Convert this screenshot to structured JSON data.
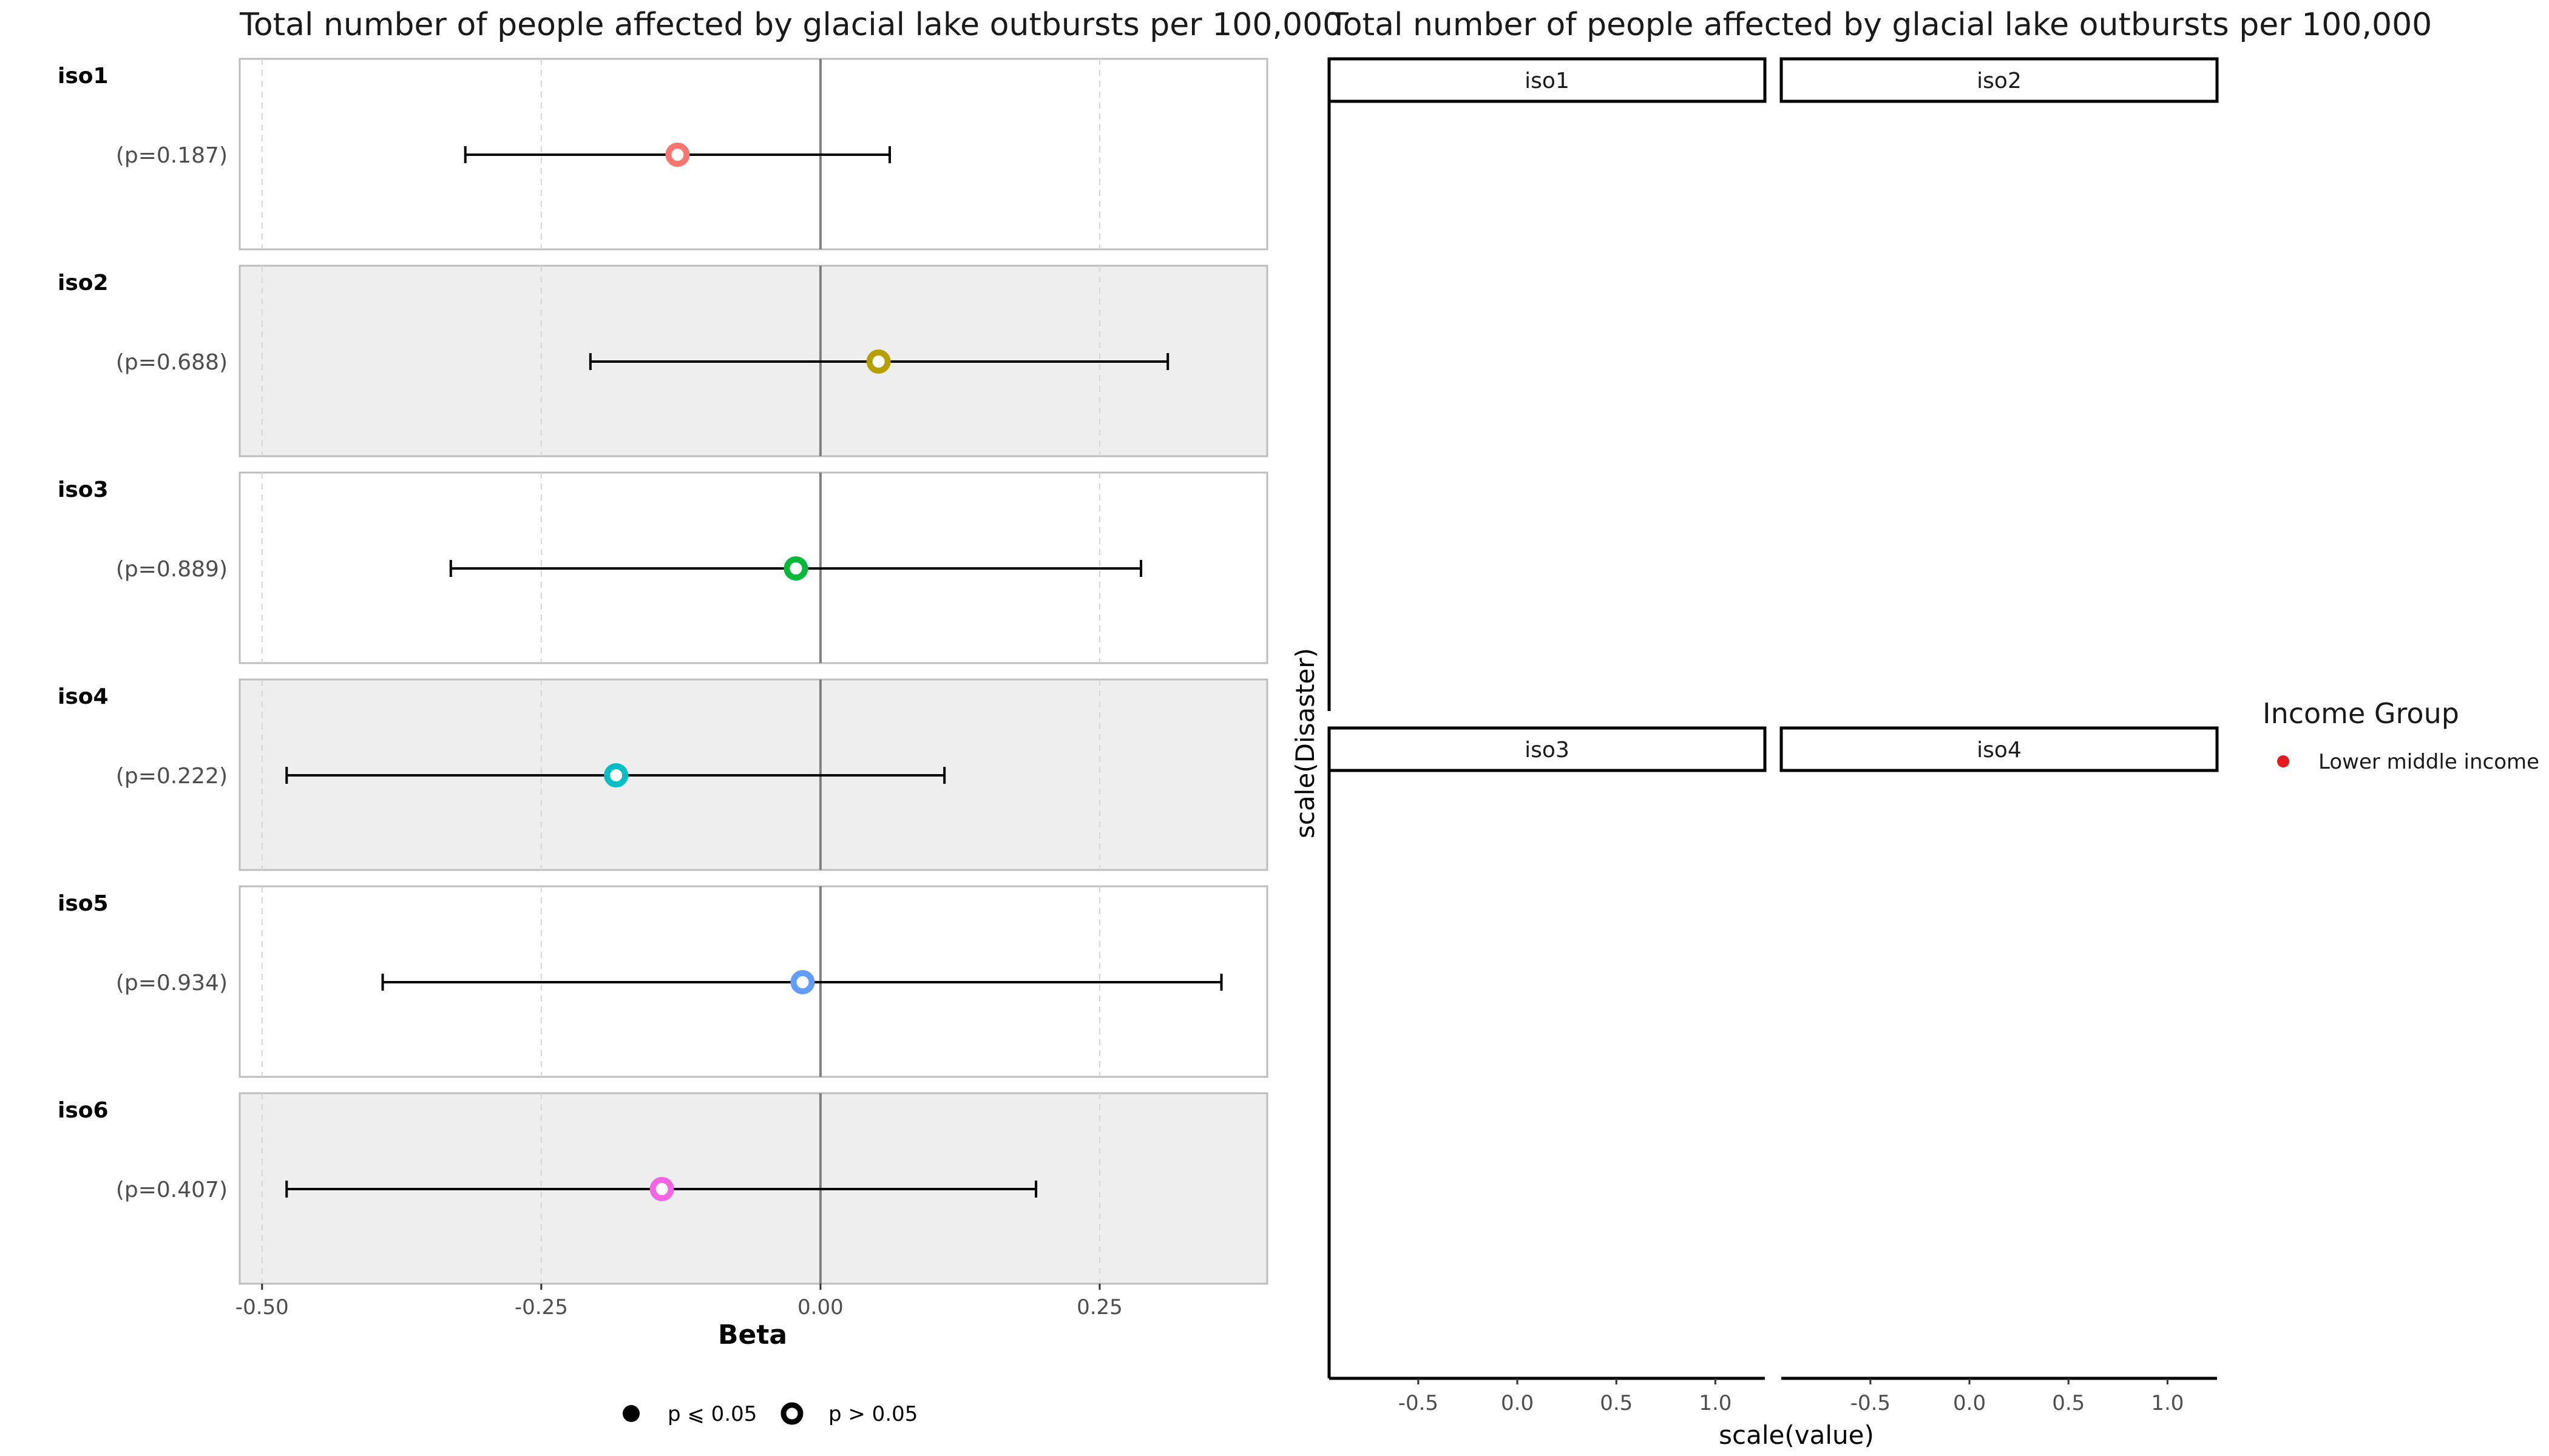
{
  "chart_data": [
    {
      "type": "forest",
      "title": "Total number of people affected by glacial lake outbursts per 100,000",
      "xlabel": "Beta",
      "xlim": [
        -0.52,
        0.4
      ],
      "x_ticks": [
        -0.5,
        -0.25,
        0.0,
        0.25
      ],
      "x_tick_labels": [
        "-0.50",
        "-0.25",
        "0.00",
        "0.25"
      ],
      "reference_line": 0,
      "rows": [
        {
          "label": "iso1",
          "p_label": "(p=0.187)",
          "beta": -0.128,
          "lower": -0.318,
          "upper": 0.062,
          "color": "#F8766D",
          "significant": false
        },
        {
          "label": "iso2",
          "p_label": "(p=0.688)",
          "beta": 0.052,
          "lower": -0.206,
          "upper": 0.311,
          "color": "#B79F00",
          "significant": false
        },
        {
          "label": "iso3",
          "p_label": "(p=0.889)",
          "beta": -0.022,
          "lower": -0.331,
          "upper": 0.287,
          "color": "#00BA38",
          "significant": false
        },
        {
          "label": "iso4",
          "p_label": "(p=0.222)",
          "beta": -0.183,
          "lower": -0.478,
          "upper": 0.111,
          "color": "#00BFC4",
          "significant": false
        },
        {
          "label": "iso5",
          "p_label": "(p=0.934)",
          "beta": -0.016,
          "lower": -0.392,
          "upper": 0.359,
          "color": "#619CFF",
          "significant": false
        },
        {
          "label": "iso6",
          "p_label": "(p=0.407)",
          "beta": -0.142,
          "lower": -0.478,
          "upper": 0.193,
          "color": "#F564E3",
          "significant": false
        }
      ],
      "legend": [
        {
          "label": "p ⩽ 0.05",
          "style": "filled"
        },
        {
          "label": "p > 0.05",
          "style": "hollow"
        }
      ]
    },
    {
      "type": "scatter",
      "title": "Total number of people affected by glacial lake outbursts per 100,000",
      "xlabel": "scale(value)",
      "ylabel": "scale(Disaster)",
      "xlim": [
        -0.95,
        1.25
      ],
      "x_ticks": [
        -0.5,
        0.0,
        0.5,
        1.0
      ],
      "x_tick_labels": [
        "-0.5",
        "0.0",
        "0.5",
        "1.0"
      ],
      "facets": [
        "iso1",
        "iso2",
        "iso3",
        "iso4"
      ],
      "points": [],
      "legend": {
        "title": "Income Group",
        "items": [
          {
            "label": "Lower middle income",
            "color": "#E41A1C"
          }
        ]
      }
    }
  ]
}
